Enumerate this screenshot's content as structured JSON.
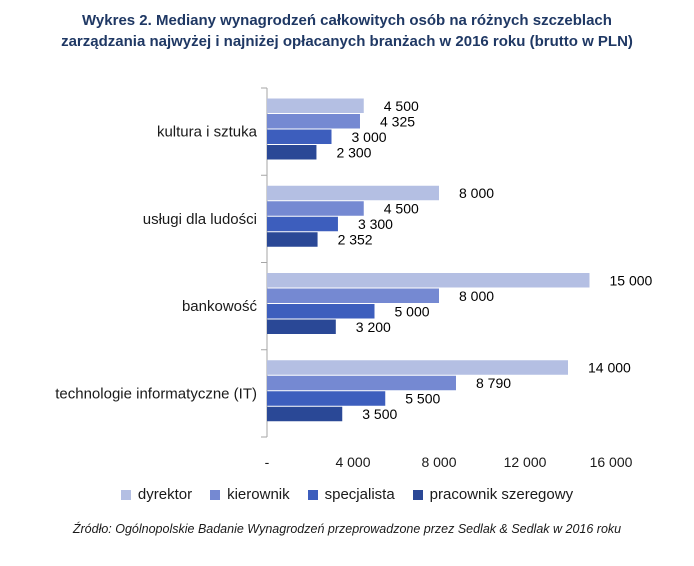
{
  "title_line1": "Wykres 2. Mediany wynagrodzeń całkowitych osób na różnych szczeblach",
  "title_line2": "zarządzania najwyżej i najniżej opłacanych branżach w 2016 roku (brutto w PLN)",
  "source": "Źródło: Ogólnopolskie Badanie Wynagrodzeń przeprowadzone przez Sedlak & Sedlak w 2016 roku",
  "chart_data": {
    "type": "bar",
    "orientation": "horizontal",
    "categories": [
      "kultura i sztuka",
      "usługi dla ludości",
      "bankowość",
      "technologie informatyczne (IT)"
    ],
    "series": [
      {
        "name": "dyrektor",
        "color": "#b4bfe3",
        "values": [
          4500,
          8000,
          15000,
          14000
        ],
        "labels": [
          "4 500",
          "8 000",
          "15 000",
          "14 000"
        ]
      },
      {
        "name": "kierownik",
        "color": "#7589d2",
        "values": [
          4325,
          4500,
          8000,
          8790
        ],
        "labels": [
          "4 325",
          "4 500",
          "8 000",
          "8 790"
        ]
      },
      {
        "name": "specjalista",
        "color": "#3d5ebd",
        "values": [
          3000,
          3300,
          5000,
          5500
        ],
        "labels": [
          "3 000",
          "3 300",
          "5 000",
          "5 500"
        ]
      },
      {
        "name": "pracownik szeregowy",
        "color": "#2a4896",
        "values": [
          2300,
          2352,
          3200,
          3500
        ],
        "labels": [
          "2 300",
          "2 352",
          "3 200",
          "3 500"
        ]
      }
    ],
    "xlim": [
      0,
      16000
    ],
    "xticks": [
      0,
      4000,
      8000,
      12000,
      16000
    ],
    "xtick_labels": [
      "-",
      "4 000",
      "8 000",
      "12 000",
      "16 000"
    ],
    "legend_position": "bottom",
    "grid": false
  }
}
